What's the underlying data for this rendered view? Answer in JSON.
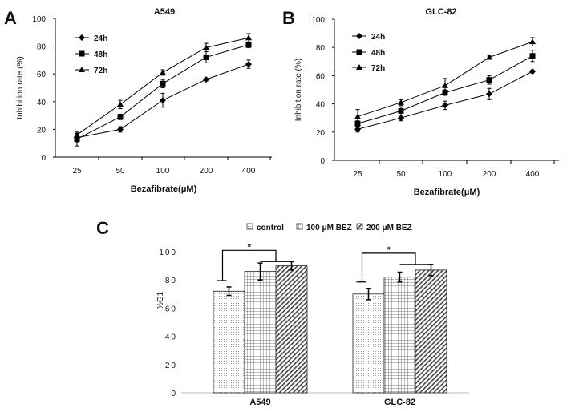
{
  "chart_data": [
    {
      "type": "line",
      "panel": "A",
      "title": "A549",
      "xlabel": "Bezafibrate(μM)",
      "ylabel": "Inhibition rate (%)",
      "categories": [
        "25",
        "50",
        "100",
        "200",
        "400"
      ],
      "yticks": [
        "0",
        "20",
        "40",
        "60",
        "80",
        "100"
      ],
      "ylim": [
        0,
        100
      ],
      "legend_position": "top-left",
      "series": [
        {
          "name": "24h",
          "marker": "diamond",
          "values": [
            14,
            20,
            41,
            56,
            67
          ],
          "errors": [
            3,
            2,
            5,
            1,
            3
          ]
        },
        {
          "name": "48h",
          "marker": "square",
          "values": [
            13,
            29,
            53,
            72,
            81
          ],
          "errors": [
            5,
            2,
            3,
            4,
            2
          ]
        },
        {
          "name": "72h",
          "marker": "triangle",
          "values": [
            16,
            38,
            61,
            79,
            86
          ],
          "errors": [
            2,
            3,
            2,
            3,
            3
          ]
        }
      ]
    },
    {
      "type": "line",
      "panel": "B",
      "title": "GLC-82",
      "xlabel": "Bezafibrate(μM)",
      "ylabel": "Inhibition rate (%)",
      "categories": [
        "25",
        "50",
        "100",
        "200",
        "400"
      ],
      "yticks": [
        "0",
        "20",
        "40",
        "60",
        "80",
        "100"
      ],
      "ylim": [
        0,
        100
      ],
      "legend_position": "top-left",
      "series": [
        {
          "name": "24h",
          "marker": "diamond",
          "values": [
            22,
            30,
            39,
            47,
            63
          ],
          "errors": [
            2,
            2,
            3,
            4,
            1
          ]
        },
        {
          "name": "48h",
          "marker": "square",
          "values": [
            26,
            35,
            48,
            57,
            74
          ],
          "errors": [
            2,
            3,
            2,
            3,
            4
          ]
        },
        {
          "name": "72h",
          "marker": "triangle",
          "values": [
            31,
            41,
            53,
            73,
            84
          ],
          "errors": [
            5,
            2,
            5,
            1,
            3
          ]
        }
      ]
    },
    {
      "type": "bar",
      "panel": "C",
      "title": "",
      "xlabel": "",
      "ylabel": "%G1",
      "categories": [
        "A549",
        "GLC-82"
      ],
      "yticks": [
        "0",
        "20",
        "40",
        "60",
        "80",
        "100"
      ],
      "ylim": [
        0,
        100
      ],
      "legend_position": "top",
      "series": [
        {
          "name": "control",
          "pattern": "dots",
          "values": [
            72,
            70
          ],
          "errors": [
            3,
            4
          ]
        },
        {
          "name": "100 μM BEZ",
          "pattern": "grid",
          "values": [
            86,
            82
          ],
          "errors": [
            6,
            3.5
          ]
        },
        {
          "name": "200 μM BEZ",
          "pattern": "diagonal",
          "values": [
            90,
            87
          ],
          "errors": [
            3,
            4
          ]
        }
      ],
      "annotations": [
        "*",
        "*"
      ]
    }
  ]
}
